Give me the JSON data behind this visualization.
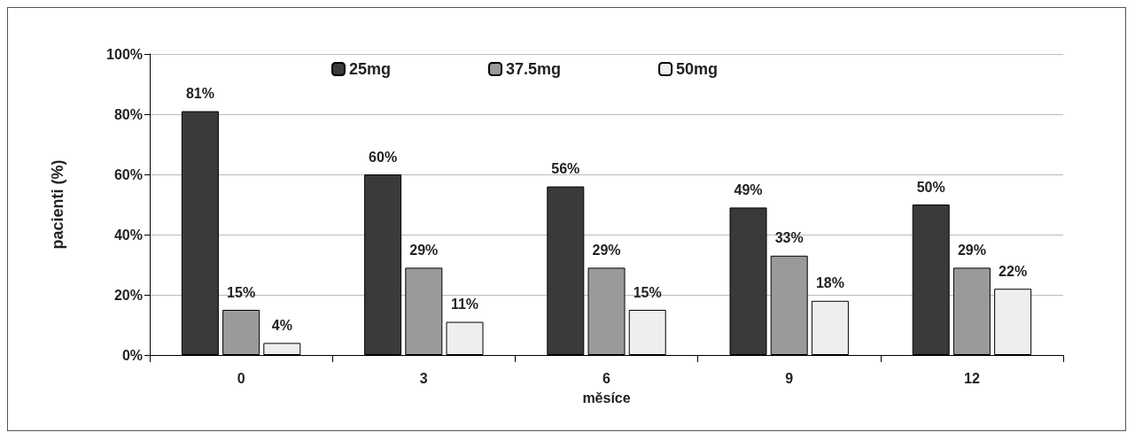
{
  "chart_data": {
    "type": "bar",
    "xlabel": "měsíce",
    "ylabel": "pacienti (%)",
    "categories": [
      "0",
      "3",
      "6",
      "9",
      "12"
    ],
    "series": [
      {
        "name": "25mg",
        "color": "#3a3a3a",
        "values": [
          81,
          60,
          56,
          49,
          50
        ],
        "value_labels": [
          "81%",
          "60%",
          "56%",
          "49%",
          "50%"
        ]
      },
      {
        "name": "37.5mg",
        "color": "#9a9a9a",
        "values": [
          15,
          29,
          29,
          33,
          29
        ],
        "value_labels": [
          "15%",
          "29%",
          "29%",
          "33%",
          "29%"
        ]
      },
      {
        "name": "50mg",
        "color": "#eeeeee",
        "values": [
          4,
          11,
          15,
          18,
          22
        ],
        "value_labels": [
          "4%",
          "11%",
          "15%",
          "18%",
          "22%"
        ]
      }
    ],
    "ylim": [
      0,
      100
    ],
    "yticks": [
      {
        "value": 0,
        "label": "0%"
      },
      {
        "value": 20,
        "label": "20%"
      },
      {
        "value": 40,
        "label": "40%"
      },
      {
        "value": 60,
        "label": "60%"
      },
      {
        "value": 80,
        "label": "80%"
      },
      {
        "value": 100,
        "label": "100%"
      }
    ],
    "grid": "y",
    "legend": "top"
  }
}
